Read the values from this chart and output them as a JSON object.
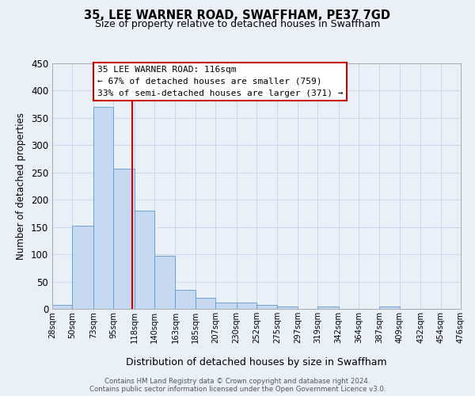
{
  "title": "35, LEE WARNER ROAD, SWAFFHAM, PE37 7GD",
  "subtitle": "Size of property relative to detached houses in Swaffham",
  "xlabel": "Distribution of detached houses by size in Swaffham",
  "ylabel": "Number of detached properties",
  "bin_edges": [
    28,
    50,
    73,
    95,
    118,
    140,
    163,
    185,
    207,
    230,
    252,
    275,
    297,
    319,
    342,
    364,
    387,
    409,
    432,
    454,
    476
  ],
  "bar_heights": [
    7,
    152,
    370,
    257,
    180,
    97,
    35,
    21,
    11,
    11,
    7,
    4,
    0,
    4,
    0,
    0,
    4,
    0,
    0,
    0
  ],
  "tick_labels": [
    "28sqm",
    "50sqm",
    "73sqm",
    "95sqm",
    "118sqm",
    "140sqm",
    "163sqm",
    "185sqm",
    "207sqm",
    "230sqm",
    "252sqm",
    "275sqm",
    "297sqm",
    "319sqm",
    "342sqm",
    "364sqm",
    "387sqm",
    "409sqm",
    "432sqm",
    "454sqm",
    "476sqm"
  ],
  "bar_color": "#c6d9f0",
  "bar_edge_color": "#5b9bd5",
  "grid_color": "#c8d8ec",
  "background_color": "#eaf0f8",
  "property_line_x": 116,
  "property_line_color": "#cc0000",
  "annotation_title": "35 LEE WARNER ROAD: 116sqm",
  "annotation_line1": "← 67% of detached houses are smaller (759)",
  "annotation_line2": "33% of semi-detached houses are larger (371) →",
  "annotation_box_color": "#ffffff",
  "annotation_box_edge_color": "#cc0000",
  "ylim": [
    0,
    450
  ],
  "yticks": [
    0,
    50,
    100,
    150,
    200,
    250,
    300,
    350,
    400,
    450
  ],
  "footer_line1": "Contains HM Land Registry data © Crown copyright and database right 2024.",
  "footer_line2": "Contains public sector information licensed under the Open Government Licence v3.0."
}
